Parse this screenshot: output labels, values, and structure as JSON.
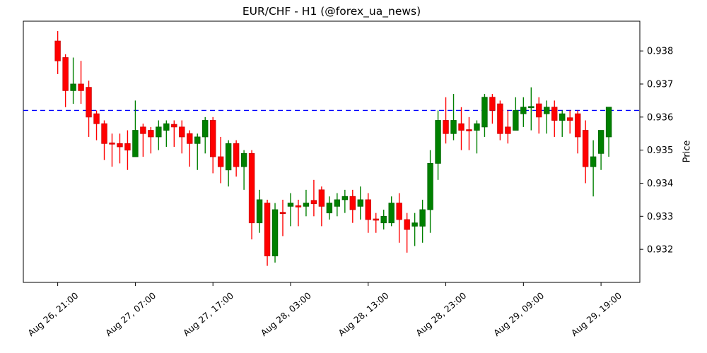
{
  "chart_data": {
    "type": "candlestick",
    "title": "EUR/CHF - H1 (@forex_ua_news)",
    "ylabel": "Price",
    "legend": "none",
    "grid": false,
    "ylim": [
      0.931,
      0.9389
    ],
    "y_ticks": [
      0.932,
      0.933,
      0.934,
      0.935,
      0.936,
      0.937,
      0.938
    ],
    "x_tick_indices": [
      0,
      10,
      20,
      30,
      40,
      50,
      60,
      70
    ],
    "x_tick_labels": [
      "Aug 26, 21:00",
      "Aug 27, 07:00",
      "Aug 27, 17:00",
      "Aug 28, 03:00",
      "Aug 28, 13:00",
      "Aug 28, 23:00",
      "Aug 29, 09:00",
      "Aug 29, 19:00"
    ],
    "hline": {
      "value": 0.9362,
      "style": "dashed",
      "color": "#0000ff"
    },
    "colors": {
      "up": "#008000",
      "down": "#ff0000",
      "up_edge": "#006400",
      "down_edge": "#cc0000",
      "hline": "#0000ff",
      "axis": "#000000",
      "background": "#ffffff"
    },
    "candle_format": [
      "time",
      "open",
      "high",
      "low",
      "close"
    ],
    "candles": [
      [
        "Aug 26 21:00",
        0.9383,
        0.9386,
        0.9373,
        0.9377
      ],
      [
        "Aug 26 22:00",
        0.9378,
        0.9379,
        0.9363,
        0.9368
      ],
      [
        "Aug 26 23:00",
        0.9368,
        0.9378,
        0.9364,
        0.937
      ],
      [
        "Aug 27 00:00",
        0.937,
        0.9377,
        0.9364,
        0.9368
      ],
      [
        "Aug 27 01:00",
        0.9369,
        0.9371,
        0.9354,
        0.936
      ],
      [
        "Aug 27 02:00",
        0.9361,
        0.9362,
        0.9353,
        0.9358
      ],
      [
        "Aug 27 03:00",
        0.9358,
        0.9359,
        0.9347,
        0.9352
      ],
      [
        "Aug 27 04:00",
        0.93522,
        0.9355,
        0.9345,
        0.93518
      ],
      [
        "Aug 27 05:00",
        0.9352,
        0.9355,
        0.9346,
        0.9351
      ],
      [
        "Aug 27 06:00",
        0.9352,
        0.9356,
        0.9344,
        0.935
      ],
      [
        "Aug 27 07:00",
        0.9348,
        0.9365,
        0.9348,
        0.9356
      ],
      [
        "Aug 27 08:00",
        0.9357,
        0.9358,
        0.9348,
        0.9355
      ],
      [
        "Aug 27 09:00",
        0.9356,
        0.9357,
        0.9349,
        0.9354
      ],
      [
        "Aug 27 10:00",
        0.9354,
        0.9359,
        0.935,
        0.9357
      ],
      [
        "Aug 27 11:00",
        0.9356,
        0.9359,
        0.9351,
        0.9358
      ],
      [
        "Aug 27 12:00",
        0.93578,
        0.9359,
        0.9351,
        0.9357
      ],
      [
        "Aug 27 13:00",
        0.9357,
        0.9359,
        0.9349,
        0.9354
      ],
      [
        "Aug 27 14:00",
        0.9355,
        0.9356,
        0.9345,
        0.9352
      ],
      [
        "Aug 27 15:00",
        0.9352,
        0.9355,
        0.9344,
        0.9354
      ],
      [
        "Aug 27 16:00",
        0.9354,
        0.936,
        0.9349,
        0.9359
      ],
      [
        "Aug 27 17:00",
        0.9359,
        0.936,
        0.9343,
        0.9348
      ],
      [
        "Aug 27 18:00",
        0.9348,
        0.9354,
        0.934,
        0.9345
      ],
      [
        "Aug 27 19:00",
        0.9344,
        0.9353,
        0.9339,
        0.9352
      ],
      [
        "Aug 27 20:00",
        0.9352,
        0.9353,
        0.9342,
        0.9345
      ],
      [
        "Aug 27 21:00",
        0.9345,
        0.935,
        0.9338,
        0.9349
      ],
      [
        "Aug 27 22:00",
        0.9349,
        0.935,
        0.9323,
        0.9328
      ],
      [
        "Aug 27 23:00",
        0.9328,
        0.9338,
        0.9325,
        0.9335
      ],
      [
        "Aug 28 00:00",
        0.9334,
        0.9335,
        0.9315,
        0.9318
      ],
      [
        "Aug 28 01:00",
        0.9318,
        0.9334,
        0.9316,
        0.9332
      ],
      [
        "Aug 28 02:00",
        0.93312,
        0.9335,
        0.9324,
        0.93308
      ],
      [
        "Aug 28 03:00",
        0.9333,
        0.9337,
        0.9327,
        0.9334
      ],
      [
        "Aug 28 04:00",
        0.93332,
        0.9335,
        0.9327,
        0.93328
      ],
      [
        "Aug 28 05:00",
        0.9333,
        0.9338,
        0.933,
        0.9334
      ],
      [
        "Aug 28 06:00",
        0.93348,
        0.9341,
        0.933,
        0.93338
      ],
      [
        "Aug 28 07:00",
        0.9338,
        0.9339,
        0.9327,
        0.9333
      ],
      [
        "Aug 28 08:00",
        0.9331,
        0.9336,
        0.9329,
        0.9334
      ],
      [
        "Aug 28 09:00",
        0.9333,
        0.9337,
        0.933,
        0.9335
      ],
      [
        "Aug 28 10:00",
        0.9335,
        0.9338,
        0.9331,
        0.9336
      ],
      [
        "Aug 28 11:00",
        0.9336,
        0.9338,
        0.9328,
        0.9332
      ],
      [
        "Aug 28 12:00",
        0.9333,
        0.9339,
        0.9329,
        0.9335
      ],
      [
        "Aug 28 13:00",
        0.9335,
        0.9337,
        0.9325,
        0.9329
      ],
      [
        "Aug 28 14:00",
        0.93292,
        0.9331,
        0.9325,
        0.93288
      ],
      [
        "Aug 28 15:00",
        0.9328,
        0.9332,
        0.9326,
        0.933
      ],
      [
        "Aug 28 16:00",
        0.9328,
        0.9336,
        0.9327,
        0.9334
      ],
      [
        "Aug 28 17:00",
        0.9334,
        0.9337,
        0.9322,
        0.9329
      ],
      [
        "Aug 28 18:00",
        0.9329,
        0.9331,
        0.9319,
        0.9326
      ],
      [
        "Aug 28 19:00",
        0.9327,
        0.9331,
        0.9321,
        0.9328
      ],
      [
        "Aug 28 20:00",
        0.9327,
        0.9335,
        0.9322,
        0.9332
      ],
      [
        "Aug 28 21:00",
        0.9332,
        0.935,
        0.9325,
        0.9346
      ],
      [
        "Aug 28 22:00",
        0.9346,
        0.9362,
        0.9341,
        0.9359
      ],
      [
        "Aug 28 23:00",
        0.9359,
        0.9366,
        0.9352,
        0.9355
      ],
      [
        "Aug 29 00:00",
        0.9355,
        0.9367,
        0.9353,
        0.9359
      ],
      [
        "Aug 29 01:00",
        0.9358,
        0.9363,
        0.935,
        0.9356
      ],
      [
        "Aug 29 02:00",
        0.93562,
        0.936,
        0.935,
        0.93558
      ],
      [
        "Aug 29 03:00",
        0.9356,
        0.9359,
        0.9349,
        0.9358
      ],
      [
        "Aug 29 04:00",
        0.9357,
        0.9367,
        0.9354,
        0.9366
      ],
      [
        "Aug 29 05:00",
        0.9366,
        0.9367,
        0.9358,
        0.9362
      ],
      [
        "Aug 29 06:00",
        0.9364,
        0.9365,
        0.9353,
        0.9355
      ],
      [
        "Aug 29 07:00",
        0.9357,
        0.9362,
        0.9352,
        0.9355
      ],
      [
        "Aug 29 08:00",
        0.9356,
        0.9366,
        0.9356,
        0.9362
      ],
      [
        "Aug 29 09:00",
        0.9361,
        0.9366,
        0.9357,
        0.9363
      ],
      [
        "Aug 29 10:00",
        0.93628,
        0.9369,
        0.9356,
        0.93632
      ],
      [
        "Aug 29 11:00",
        0.9364,
        0.9366,
        0.9355,
        0.936
      ],
      [
        "Aug 29 12:00",
        0.9361,
        0.9365,
        0.9355,
        0.9363
      ],
      [
        "Aug 29 13:00",
        0.9363,
        0.9365,
        0.9354,
        0.9359
      ],
      [
        "Aug 29 14:00",
        0.9359,
        0.9362,
        0.9354,
        0.9361
      ],
      [
        "Aug 29 15:00",
        0.93598,
        0.9362,
        0.9355,
        0.9359
      ],
      [
        "Aug 29 16:00",
        0.9361,
        0.9362,
        0.9349,
        0.9354
      ],
      [
        "Aug 29 17:00",
        0.9356,
        0.9359,
        0.934,
        0.9345
      ],
      [
        "Aug 29 18:00",
        0.9345,
        0.9353,
        0.9336,
        0.9348
      ],
      [
        "Aug 29 19:00",
        0.9349,
        0.9356,
        0.9344,
        0.9356
      ],
      [
        "Aug 29 20:00",
        0.9354,
        0.9363,
        0.9348,
        0.9363
      ]
    ]
  }
}
